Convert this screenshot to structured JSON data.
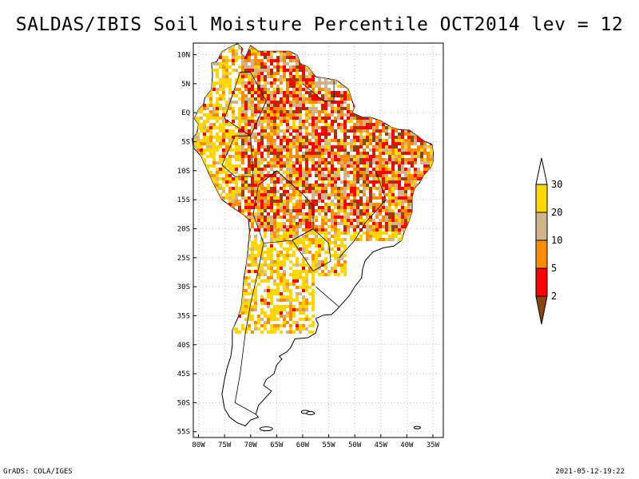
{
  "title": "SALDAS/IBIS Soil Moisture Percentile OCT2014 lev = 12",
  "footer": {
    "left": "GrADS: COLA/IGES",
    "right": "2021-05-12-19:22"
  },
  "map": {
    "lat_range": [
      -56,
      12
    ],
    "lon_range": [
      -81,
      -33
    ],
    "lat_ticks": [
      {
        "value": 10,
        "label": "10N"
      },
      {
        "value": 5,
        "label": "5N"
      },
      {
        "value": 0,
        "label": "EQ"
      },
      {
        "value": -5,
        "label": "5S"
      },
      {
        "value": -10,
        "label": "10S"
      },
      {
        "value": -15,
        "label": "15S"
      },
      {
        "value": -20,
        "label": "20S"
      },
      {
        "value": -25,
        "label": "25S"
      },
      {
        "value": -30,
        "label": "30S"
      },
      {
        "value": -35,
        "label": "35S"
      },
      {
        "value": -40,
        "label": "40S"
      },
      {
        "value": -45,
        "label": "45S"
      },
      {
        "value": -50,
        "label": "50S"
      },
      {
        "value": -55,
        "label": "55S"
      }
    ],
    "lon_ticks": [
      {
        "value": -80,
        "label": "80W"
      },
      {
        "value": -75,
        "label": "75W"
      },
      {
        "value": -70,
        "label": "70W"
      },
      {
        "value": -65,
        "label": "65W"
      },
      {
        "value": -60,
        "label": "60W"
      },
      {
        "value": -55,
        "label": "55W"
      },
      {
        "value": -50,
        "label": "50W"
      },
      {
        "value": -45,
        "label": "45W"
      },
      {
        "value": -40,
        "label": "40W"
      },
      {
        "value": -35,
        "label": "35W"
      }
    ]
  },
  "legend": {
    "levels": [
      {
        "label": "30",
        "value": 30
      },
      {
        "label": "20",
        "value": 20
      },
      {
        "label": "10",
        "value": 10
      },
      {
        "label": "5",
        "value": 5
      },
      {
        "label": "2",
        "value": 2
      }
    ],
    "colors": [
      "#ffffff",
      "#ffd700",
      "#d2b48c",
      "#ff8c00",
      "#ff0000",
      "#8b4513"
    ]
  },
  "colors": {
    "frame": "#000000",
    "grid": "#aaaaaa",
    "coast": "#000000"
  }
}
